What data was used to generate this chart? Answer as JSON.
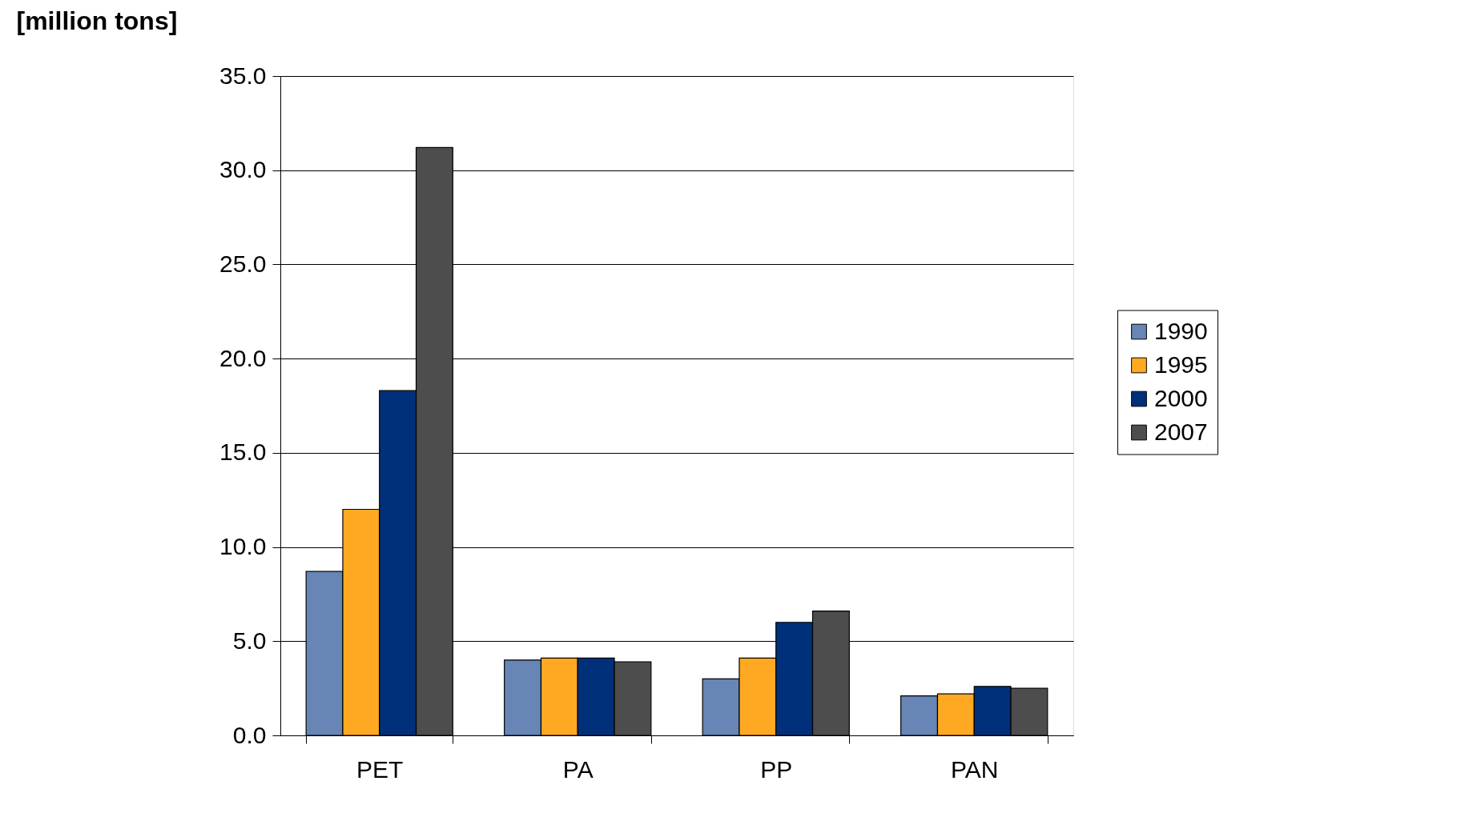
{
  "chart_data": {
    "type": "bar",
    "ylabel": "[million tons]",
    "categories": [
      "PET",
      "PA",
      "PP",
      "PAN"
    ],
    "series": [
      {
        "name": "1990",
        "color": "#6785b5",
        "values": [
          8.7,
          4.0,
          3.0,
          2.1
        ]
      },
      {
        "name": "1995",
        "color": "#ffa922",
        "values": [
          12.0,
          4.1,
          4.1,
          2.2
        ]
      },
      {
        "name": "2000",
        "color": "#00307a",
        "values": [
          18.3,
          4.1,
          6.0,
          2.6
        ]
      },
      {
        "name": "2007",
        "color": "#4d4d4d",
        "values": [
          31.2,
          3.9,
          6.6,
          2.5
        ]
      }
    ],
    "ylim": [
      0,
      35
    ],
    "yticks": [
      {
        "value": 0,
        "label": "0.0"
      },
      {
        "value": 5,
        "label": "5.0"
      },
      {
        "value": 10,
        "label": "10.0"
      },
      {
        "value": 15,
        "label": "15.0"
      },
      {
        "value": 20,
        "label": "20.0"
      },
      {
        "value": 25,
        "label": "25.0"
      },
      {
        "value": 30,
        "label": "30.0"
      },
      {
        "value": 35,
        "label": "35.0"
      }
    ],
    "grid": "y",
    "legend": "right"
  }
}
